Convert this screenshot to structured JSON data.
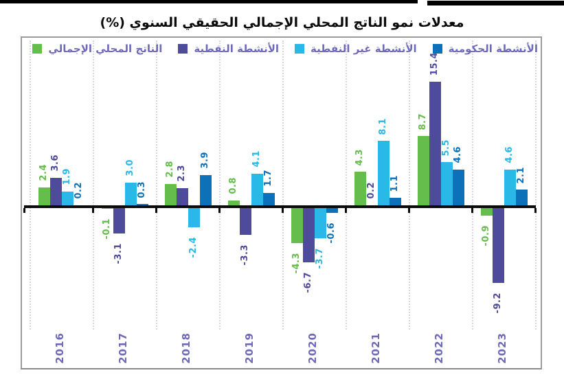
{
  "header": {
    "title": "معدلات نمو الناتج المحلي الإجمالي الحقيقي السنوي (%)"
  },
  "colors": {
    "gdp": "#65bd4c",
    "oil": "#4e4a9c",
    "non_oil": "#29b8e8",
    "gov": "#0d71ba",
    "label_text": "#6e69b8",
    "axis": "#0b0b0b",
    "gridline": "#d7d4ec"
  },
  "legend": {
    "order": [
      "gov",
      "non_oil",
      "oil",
      "gdp"
    ]
  },
  "chart_data": {
    "type": "bar",
    "title": "معدلات نمو الناتج المحلي الإجمالي الحقيقي السنوي (%)",
    "categories": [
      "2016",
      "2017",
      "2018",
      "2019",
      "2020",
      "2021",
      "2022",
      "2023"
    ],
    "series": [
      {
        "key": "gdp",
        "name": "الناتج المحلي الإجمالي",
        "values": [
          2.4,
          -0.1,
          2.8,
          0.8,
          -4.3,
          4.3,
          8.7,
          -0.9
        ]
      },
      {
        "key": "oil",
        "name": "الأنشطة النفطية",
        "values": [
          3.6,
          -3.1,
          2.3,
          -3.3,
          -6.7,
          0.2,
          15.4,
          -9.2
        ]
      },
      {
        "key": "non_oil",
        "name": "الأنشطة غير النفطية",
        "values": [
          1.9,
          3.0,
          -2.4,
          4.1,
          -3.7,
          8.1,
          5.5,
          4.6
        ]
      },
      {
        "key": "gov",
        "name": "الأنشطة الحكومية",
        "values": [
          0.2,
          0.3,
          3.9,
          1.7,
          -0.6,
          1.1,
          4.6,
          2.1
        ]
      }
    ],
    "value_label_format": "one-decimal",
    "ylim": [
      -11,
      21
    ],
    "grid": "vertical-dotted-group-separators",
    "legend_position": "top-right-rtl",
    "xlabel": "",
    "ylabel": ""
  }
}
